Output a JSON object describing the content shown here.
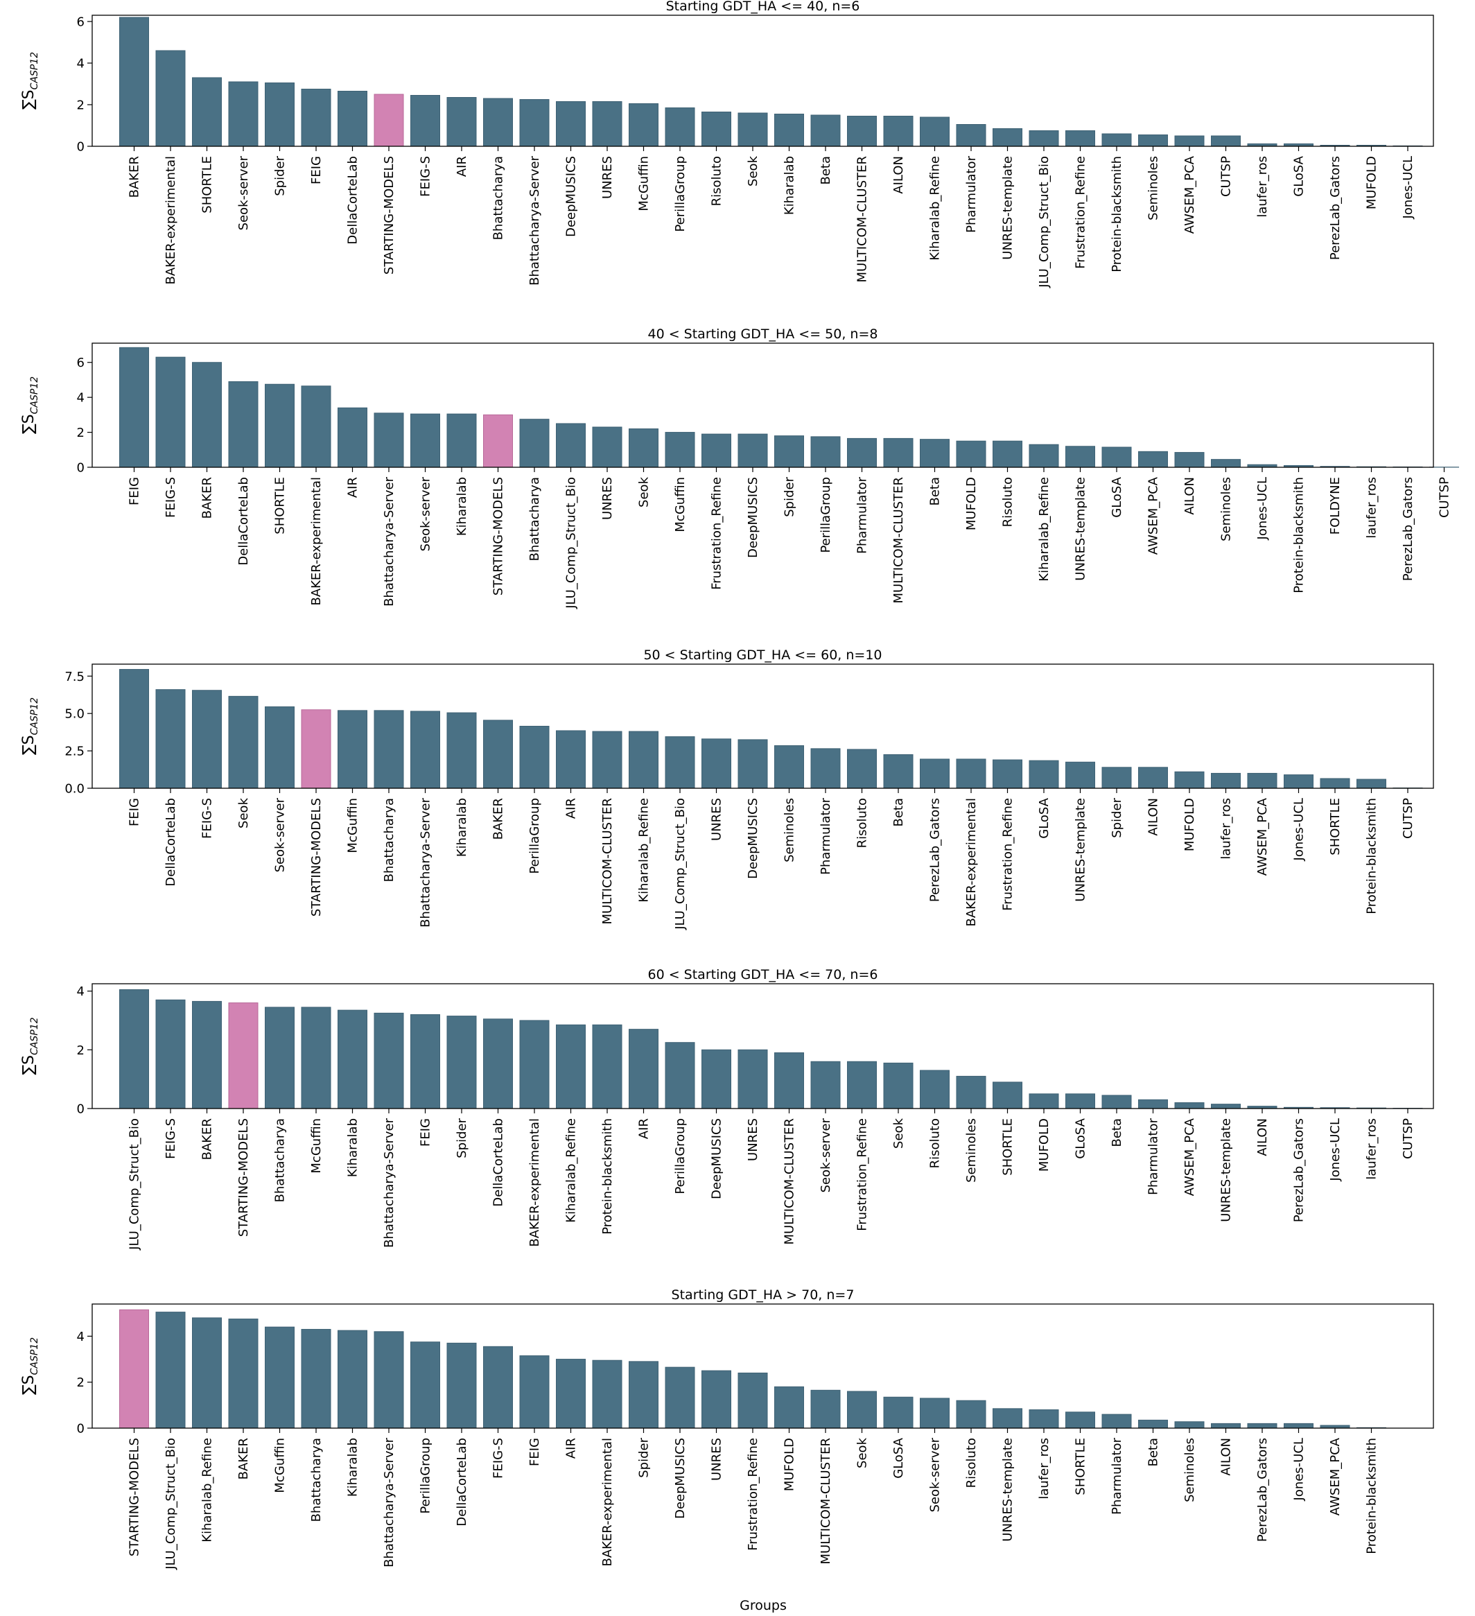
{
  "colors": {
    "default_bar": "#4a7185",
    "highlight_bar": "#d283b3",
    "bar_edge": "#3e6174",
    "highlight_edge": "#b86a99"
  },
  "highlight_category": "STARTING-MODELS",
  "y_label": {
    "main": "∑S",
    "subscript": "CASP12"
  },
  "x_label": "Groups",
  "chart_data": [
    {
      "type": "bar",
      "title": "Starting GDT_HA <= 40, n=6",
      "ylim": [
        0,
        6.3
      ],
      "yticks": [
        0,
        2,
        4,
        6
      ],
      "categories": [
        "BAKER",
        "BAKER-experimental",
        "SHORTLE",
        "Seok-server",
        "Spider",
        "FEIG",
        "DellaCorteLab",
        "STARTING-MODELS",
        "FEIG-S",
        "AIR",
        "Bhattacharya",
        "Bhattacharya-Server",
        "DeepMUSICS",
        "UNRES",
        "McGuffin",
        "PerillaGroup",
        "Risoluto",
        "Seok",
        "Kiharalab",
        "Beta",
        "MULTICOM-CLUSTER",
        "AILON",
        "Kiharalab_Refine",
        "Pharmulator",
        "UNRES-template",
        "JLU_Comp_Struct_Bio",
        "Frustration_Refine",
        "Protein-blacksmith",
        "Seminoles",
        "AWSEM_PCA",
        "CUTSP",
        "laufer_ros",
        "GLoSA",
        "PerezLab_Gators",
        "MUFOLD",
        "Jones-UCL"
      ],
      "values": [
        6.2,
        4.6,
        3.3,
        3.1,
        3.05,
        2.75,
        2.65,
        2.5,
        2.45,
        2.35,
        2.3,
        2.25,
        2.15,
        2.15,
        2.05,
        1.85,
        1.65,
        1.6,
        1.55,
        1.5,
        1.45,
        1.45,
        1.4,
        1.05,
        0.85,
        0.75,
        0.75,
        0.6,
        0.55,
        0.5,
        0.5,
        0.12,
        0.12,
        0.05,
        0.05,
        0.02
      ]
    },
    {
      "type": "bar",
      "title": "40 < Starting GDT_HA <= 50, n=8",
      "ylim": [
        0,
        7.1
      ],
      "yticks": [
        0,
        2,
        4,
        6
      ],
      "categories": [
        "FEIG",
        "FEIG-S",
        "BAKER",
        "DellaCorteLab",
        "SHORTLE",
        "BAKER-experimental",
        "AIR",
        "Bhattacharya-Server",
        "Seok-server",
        "Kiharalab",
        "STARTING-MODELS",
        "Bhattacharya",
        "JLU_Comp_Struct_Bio",
        "UNRES",
        "Seok",
        "McGuffin",
        "Frustration_Refine",
        "DeepMUSICS",
        "Spider",
        "PerillaGroup",
        "Pharmulator",
        "MULTICOM-CLUSTER",
        "Beta",
        "MUFOLD",
        "Risoluto",
        "Kiharalab_Refine",
        "UNRES-template",
        "GLoSA",
        "AWSEM_PCA",
        "AILON",
        "Seminoles",
        "Jones-UCL",
        "Protein-blacksmith",
        "FOLDYNE",
        "laufer_ros",
        "PerezLab_Gators",
        "CUTSP"
      ],
      "values": [
        6.85,
        6.3,
        6.0,
        4.9,
        4.75,
        4.65,
        3.4,
        3.1,
        3.05,
        3.05,
        3.0,
        2.75,
        2.5,
        2.3,
        2.2,
        2.0,
        1.9,
        1.9,
        1.8,
        1.75,
        1.65,
        1.65,
        1.6,
        1.5,
        1.5,
        1.3,
        1.2,
        1.15,
        0.9,
        0.85,
        0.45,
        0.15,
        0.1,
        0.05,
        0.03,
        0.02,
        0.01
      ]
    },
    {
      "type": "bar",
      "title": "50 < Starting GDT_HA <= 60, n=10",
      "ylim": [
        0,
        8.3
      ],
      "yticks": [
        0.0,
        2.5,
        5.0,
        7.5
      ],
      "categories": [
        "FEIG",
        "DellaCorteLab",
        "FEIG-S",
        "Seok",
        "Seok-server",
        "STARTING-MODELS",
        "McGuffin",
        "Bhattacharya",
        "Bhattacharya-Server",
        "Kiharalab",
        "BAKER",
        "PerillaGroup",
        "AIR",
        "MULTICOM-CLUSTER",
        "Kiharalab_Refine",
        "JLU_Comp_Struct_Bio",
        "UNRES",
        "DeepMUSICS",
        "Seminoles",
        "Pharmulator",
        "Risoluto",
        "Beta",
        "PerezLab_Gators",
        "BAKER-experimental",
        "Frustration_Refine",
        "GLoSA",
        "UNRES-template",
        "Spider",
        "AILON",
        "MUFOLD",
        "laufer_ros",
        "AWSEM_PCA",
        "Jones-UCL",
        "SHORTLE",
        "Protein-blacksmith",
        "CUTSP"
      ],
      "values": [
        7.95,
        6.6,
        6.55,
        6.15,
        5.45,
        5.25,
        5.2,
        5.2,
        5.15,
        5.05,
        4.55,
        4.15,
        3.85,
        3.8,
        3.8,
        3.45,
        3.3,
        3.25,
        2.85,
        2.65,
        2.6,
        2.25,
        1.95,
        1.95,
        1.9,
        1.85,
        1.75,
        1.4,
        1.4,
        1.1,
        1.0,
        1.0,
        0.9,
        0.65,
        0.6,
        0.02
      ]
    },
    {
      "type": "bar",
      "title": "60 < Starting GDT_HA <= 70, n=6",
      "ylim": [
        0,
        4.25
      ],
      "yticks": [
        0,
        2,
        4
      ],
      "categories": [
        "JLU_Comp_Struct_Bio",
        "FEIG-S",
        "BAKER",
        "STARTING-MODELS",
        "Bhattacharya",
        "McGuffin",
        "Kiharalab",
        "Bhattacharya-Server",
        "FEIG",
        "Spider",
        "DellaCorteLab",
        "BAKER-experimental",
        "Kiharalab_Refine",
        "Protein-blacksmith",
        "AIR",
        "PerillaGroup",
        "DeepMUSICS",
        "UNRES",
        "MULTICOM-CLUSTER",
        "Seok-server",
        "Frustration_Refine",
        "Seok",
        "Risoluto",
        "Seminoles",
        "SHORTLE",
        "MUFOLD",
        "GLoSA",
        "Beta",
        "Pharmulator",
        "AWSEM_PCA",
        "UNRES-template",
        "AILON",
        "PerezLab_Gators",
        "Jones-UCL",
        "laufer_ros",
        "CUTSP"
      ],
      "values": [
        4.05,
        3.7,
        3.65,
        3.6,
        3.45,
        3.45,
        3.35,
        3.25,
        3.2,
        3.15,
        3.05,
        3.0,
        2.85,
        2.85,
        2.7,
        2.25,
        2.0,
        2.0,
        1.9,
        1.6,
        1.6,
        1.55,
        1.3,
        1.1,
        0.9,
        0.5,
        0.5,
        0.45,
        0.3,
        0.2,
        0.15,
        0.08,
        0.04,
        0.03,
        0.02,
        0.01
      ]
    },
    {
      "type": "bar",
      "title": "Starting GDT_HA > 70, n=7",
      "ylim": [
        0,
        5.4
      ],
      "yticks": [
        0,
        2,
        4
      ],
      "categories": [
        "STARTING-MODELS",
        "JLU_Comp_Struct_Bio",
        "Kiharalab_Refine",
        "BAKER",
        "McGuffin",
        "Bhattacharya",
        "Kiharalab",
        "Bhattacharya-Server",
        "PerillaGroup",
        "DellaCorteLab",
        "FEIG-S",
        "FEIG",
        "AIR",
        "BAKER-experimental",
        "Spider",
        "DeepMUSICS",
        "UNRES",
        "Frustration_Refine",
        "MUFOLD",
        "MULTICOM-CLUSTER",
        "Seok",
        "GLoSA",
        "Seok-server",
        "Risoluto",
        "UNRES-template",
        "laufer_ros",
        "SHORTLE",
        "Pharmulator",
        "Beta",
        "Seminoles",
        "AILON",
        "PerezLab_Gators",
        "Jones-UCL",
        "AWSEM_PCA",
        "Protein-blacksmith"
      ],
      "values": [
        5.15,
        5.05,
        4.8,
        4.75,
        4.4,
        4.3,
        4.25,
        4.2,
        3.75,
        3.7,
        3.55,
        3.15,
        3.0,
        2.95,
        2.9,
        2.65,
        2.5,
        2.4,
        1.8,
        1.65,
        1.6,
        1.35,
        1.3,
        1.2,
        0.85,
        0.8,
        0.7,
        0.6,
        0.35,
        0.28,
        0.2,
        0.2,
        0.2,
        0.12,
        0.02
      ]
    }
  ]
}
